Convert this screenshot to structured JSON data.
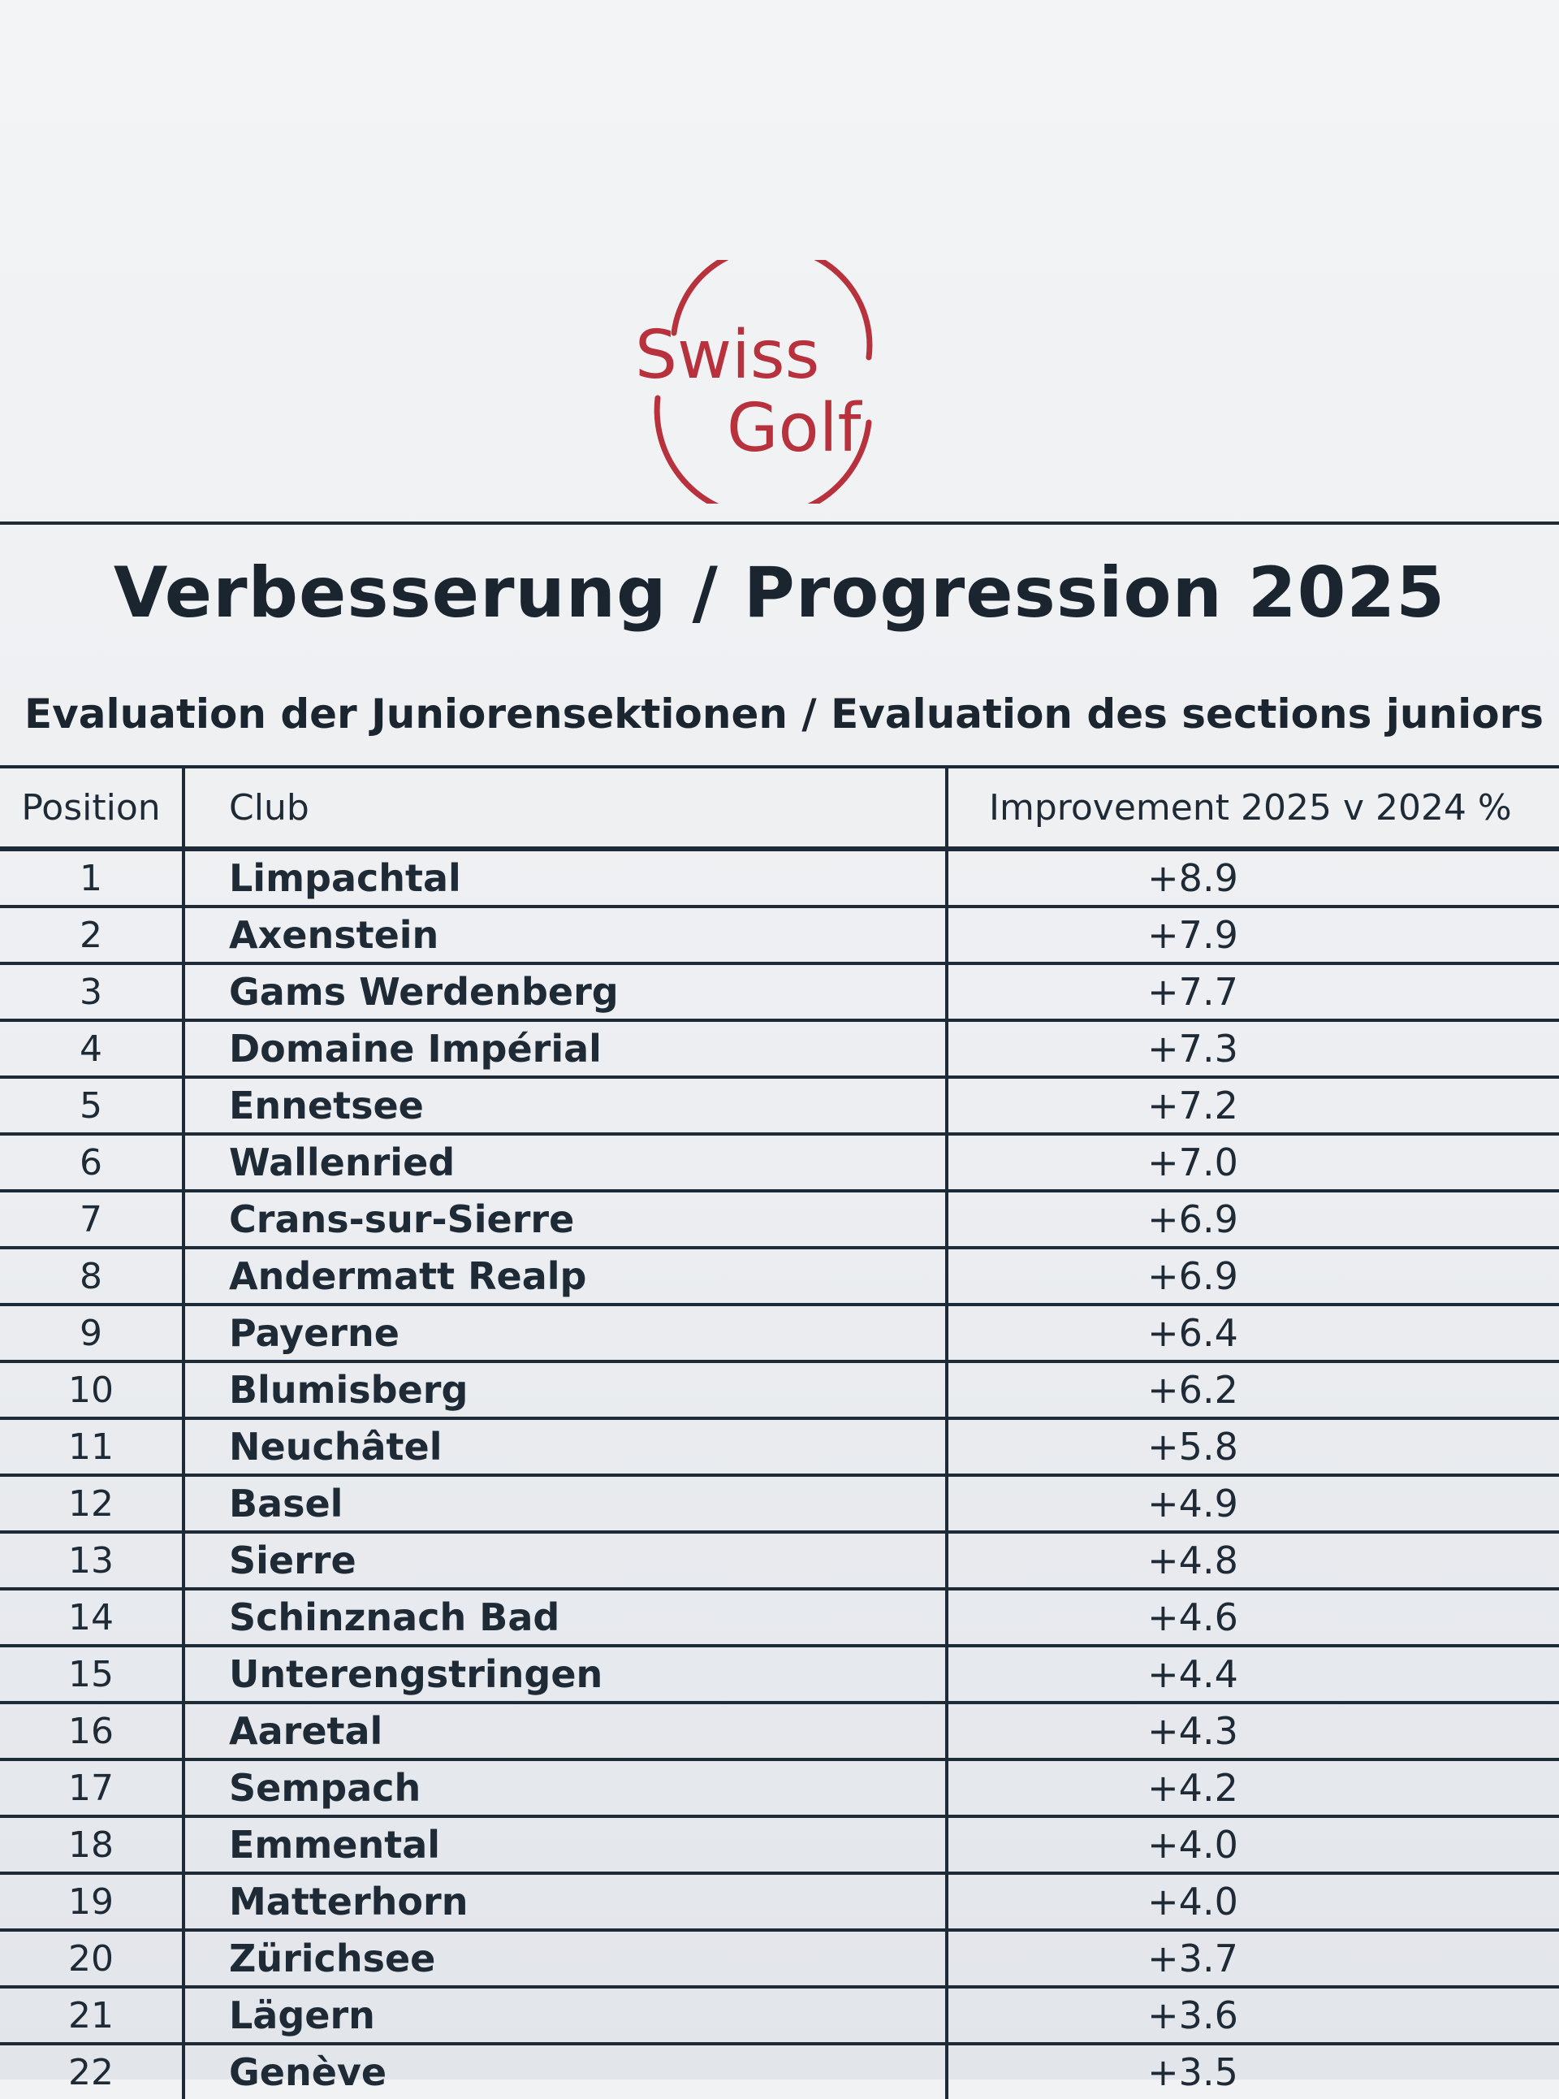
{
  "logo": {
    "line1": "Swiss",
    "line2": "Golf",
    "color": "#b8323e"
  },
  "title": "Verbesserung / Progression 2025",
  "subtitle": "Evaluation der Juniorensektionen / Evaluation des sections juniors",
  "table": {
    "headers": [
      "Position",
      "Club",
      "Improvement 2025 v 2024 %"
    ],
    "rows": [
      [
        "1",
        "Limpachtal",
        "+8.9"
      ],
      [
        "2",
        "Axenstein",
        "+7.9"
      ],
      [
        "3",
        "Gams Werdenberg",
        "+7.7"
      ],
      [
        "4",
        "Domaine Impérial",
        "+7.3"
      ],
      [
        "5",
        "Ennetsee",
        "+7.2"
      ],
      [
        "6",
        "Wallenried",
        "+7.0"
      ],
      [
        "7",
        "Crans-sur-Sierre",
        "+6.9"
      ],
      [
        "8",
        "Andermatt Realp",
        "+6.9"
      ],
      [
        "9",
        "Payerne",
        "+6.4"
      ],
      [
        "10",
        "Blumisberg",
        "+6.2"
      ],
      [
        "11",
        "Neuchâtel",
        "+5.8"
      ],
      [
        "12",
        "Basel",
        "+4.9"
      ],
      [
        "13",
        "Sierre",
        "+4.8"
      ],
      [
        "14",
        "Schinznach Bad",
        "+4.6"
      ],
      [
        "15",
        "Unterengstringen",
        "+4.4"
      ],
      [
        "16",
        "Aaretal",
        "+4.3"
      ],
      [
        "17",
        "Sempach",
        "+4.2"
      ],
      [
        "18",
        "Emmental",
        "+4.0"
      ],
      [
        "19",
        "Matterhorn",
        "+4.0"
      ],
      [
        "20",
        "Zürichsee",
        "+3.7"
      ],
      [
        "21",
        "Lägern",
        "+3.6"
      ],
      [
        "22",
        "Genève",
        "+3.5"
      ]
    ]
  }
}
